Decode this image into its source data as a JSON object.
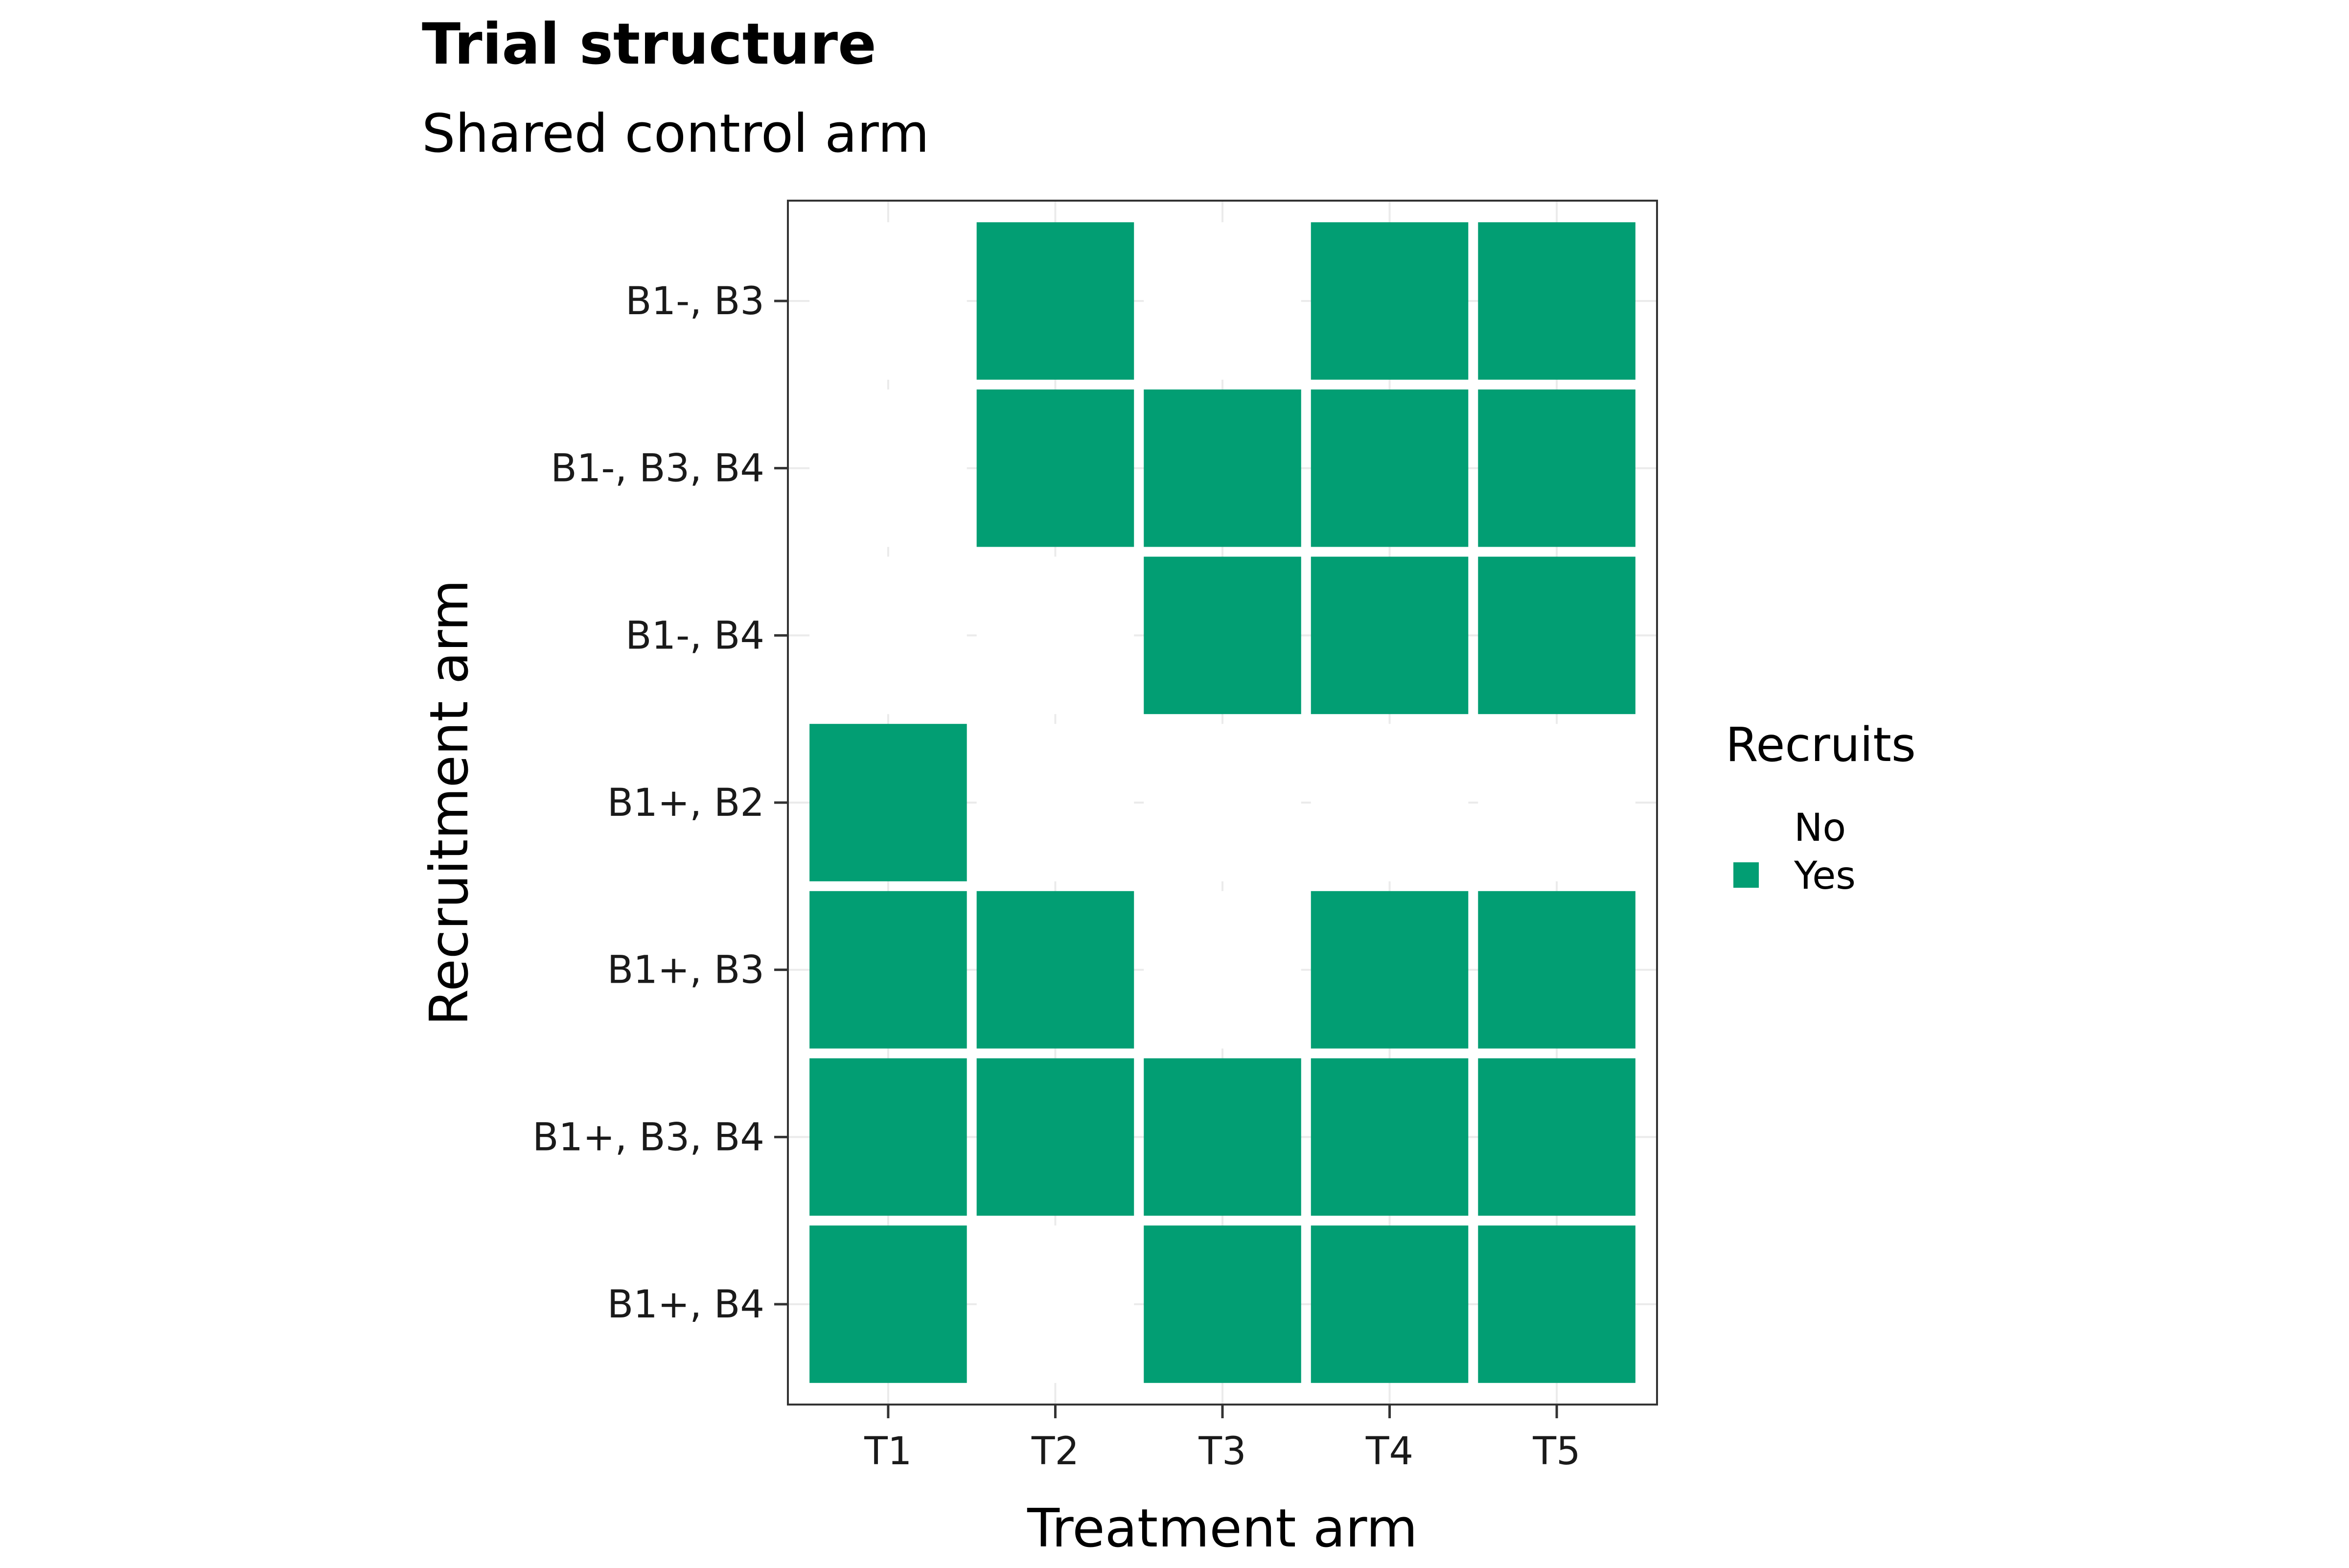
{
  "chart_data": {
    "type": "heatmap",
    "title": "Trial structure",
    "subtitle": "Shared control arm",
    "xlabel": "Treatment arm",
    "ylabel": "Recruitment arm",
    "x_categories": [
      "T1",
      "T2",
      "T3",
      "T4",
      "T5"
    ],
    "y_categories": [
      "B1-, B3",
      "B1-, B3, B4",
      "B1-, B4",
      "B1+, B2",
      "B1+, B3",
      "B1+, B3, B4",
      "B1+, B4"
    ],
    "matrix": [
      [
        "No",
        "Yes",
        "No",
        "Yes",
        "Yes"
      ],
      [
        "No",
        "Yes",
        "Yes",
        "Yes",
        "Yes"
      ],
      [
        "No",
        "No",
        "Yes",
        "Yes",
        "Yes"
      ],
      [
        "Yes",
        "No",
        "No",
        "No",
        "No"
      ],
      [
        "Yes",
        "Yes",
        "No",
        "Yes",
        "Yes"
      ],
      [
        "Yes",
        "Yes",
        "Yes",
        "Yes",
        "Yes"
      ],
      [
        "Yes",
        "No",
        "Yes",
        "Yes",
        "Yes"
      ]
    ],
    "legend": {
      "title": "Recruits",
      "position": "right",
      "entries": [
        {
          "label": "No",
          "color": "#ffffff"
        },
        {
          "label": "Yes",
          "color": "#029E73"
        }
      ]
    },
    "grid": true
  },
  "colors": {
    "yes": "#029E73",
    "no": "#ffffff",
    "panel_border": "#333333",
    "grid": "#ebebeb",
    "text": "#000000"
  }
}
